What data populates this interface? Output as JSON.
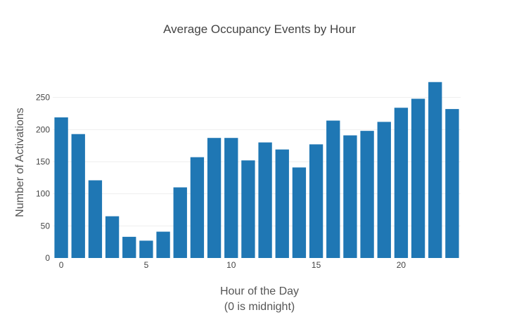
{
  "chart_data": {
    "type": "bar",
    "title": "Average Occupancy Events by Hour",
    "xlabel_line1": "Hour of the Day",
    "xlabel_line2": "(0 is midnight)",
    "ylabel": "Number of Activations",
    "x": [
      0,
      1,
      2,
      3,
      4,
      5,
      6,
      7,
      8,
      9,
      10,
      11,
      12,
      13,
      14,
      15,
      16,
      17,
      18,
      19,
      20,
      21,
      22,
      23
    ],
    "values": [
      219,
      193,
      121,
      65,
      33,
      27,
      41,
      110,
      157,
      187,
      187,
      152,
      180,
      169,
      141,
      177,
      214,
      191,
      198,
      212,
      234,
      248,
      274,
      232
    ],
    "xlim": [
      -0.5,
      23.5
    ],
    "ylim": [
      0,
      277
    ],
    "x_ticks": [
      0,
      5,
      10,
      15,
      20
    ],
    "y_ticks": [
      0,
      50,
      100,
      150,
      200,
      250
    ],
    "bar_color": "#1f77b4",
    "grid_color": "#eeeeee",
    "grid": true
  }
}
